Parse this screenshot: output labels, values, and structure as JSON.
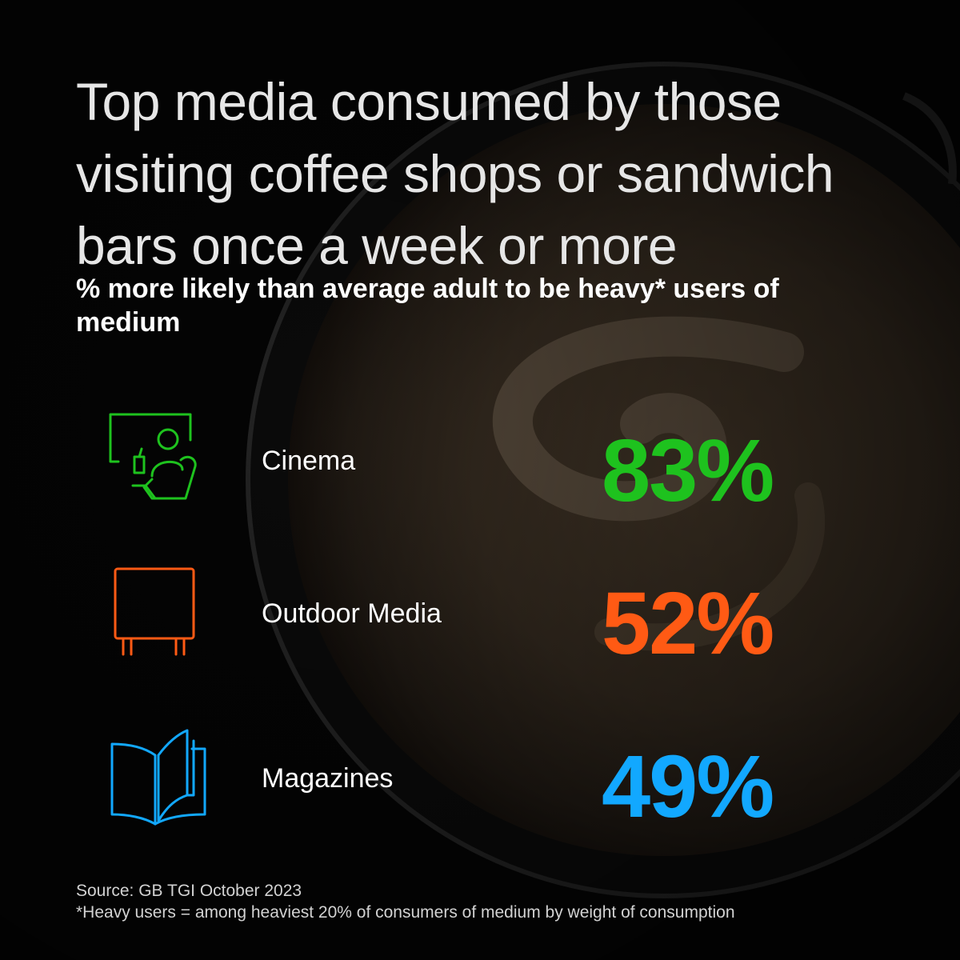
{
  "title": "Top media consumed by those visiting coffee shops or sandwich bars once a week or more",
  "subtitle": "% more likely than average adult to be heavy* users of medium",
  "items": [
    {
      "label": "Cinema",
      "value": "83%",
      "color": "#1ec21e",
      "icon": "cinema-icon"
    },
    {
      "label": "Outdoor Media",
      "value": "52%",
      "color": "#ff5a14",
      "icon": "billboard-icon"
    },
    {
      "label": "Magazines",
      "value": "49%",
      "color": "#12a8ff",
      "icon": "magazine-icon"
    }
  ],
  "footer": {
    "source": "Source: GB TGI October 2023",
    "note": "*Heavy users = among heaviest 20% of consumers of medium by weight of consumption"
  }
}
